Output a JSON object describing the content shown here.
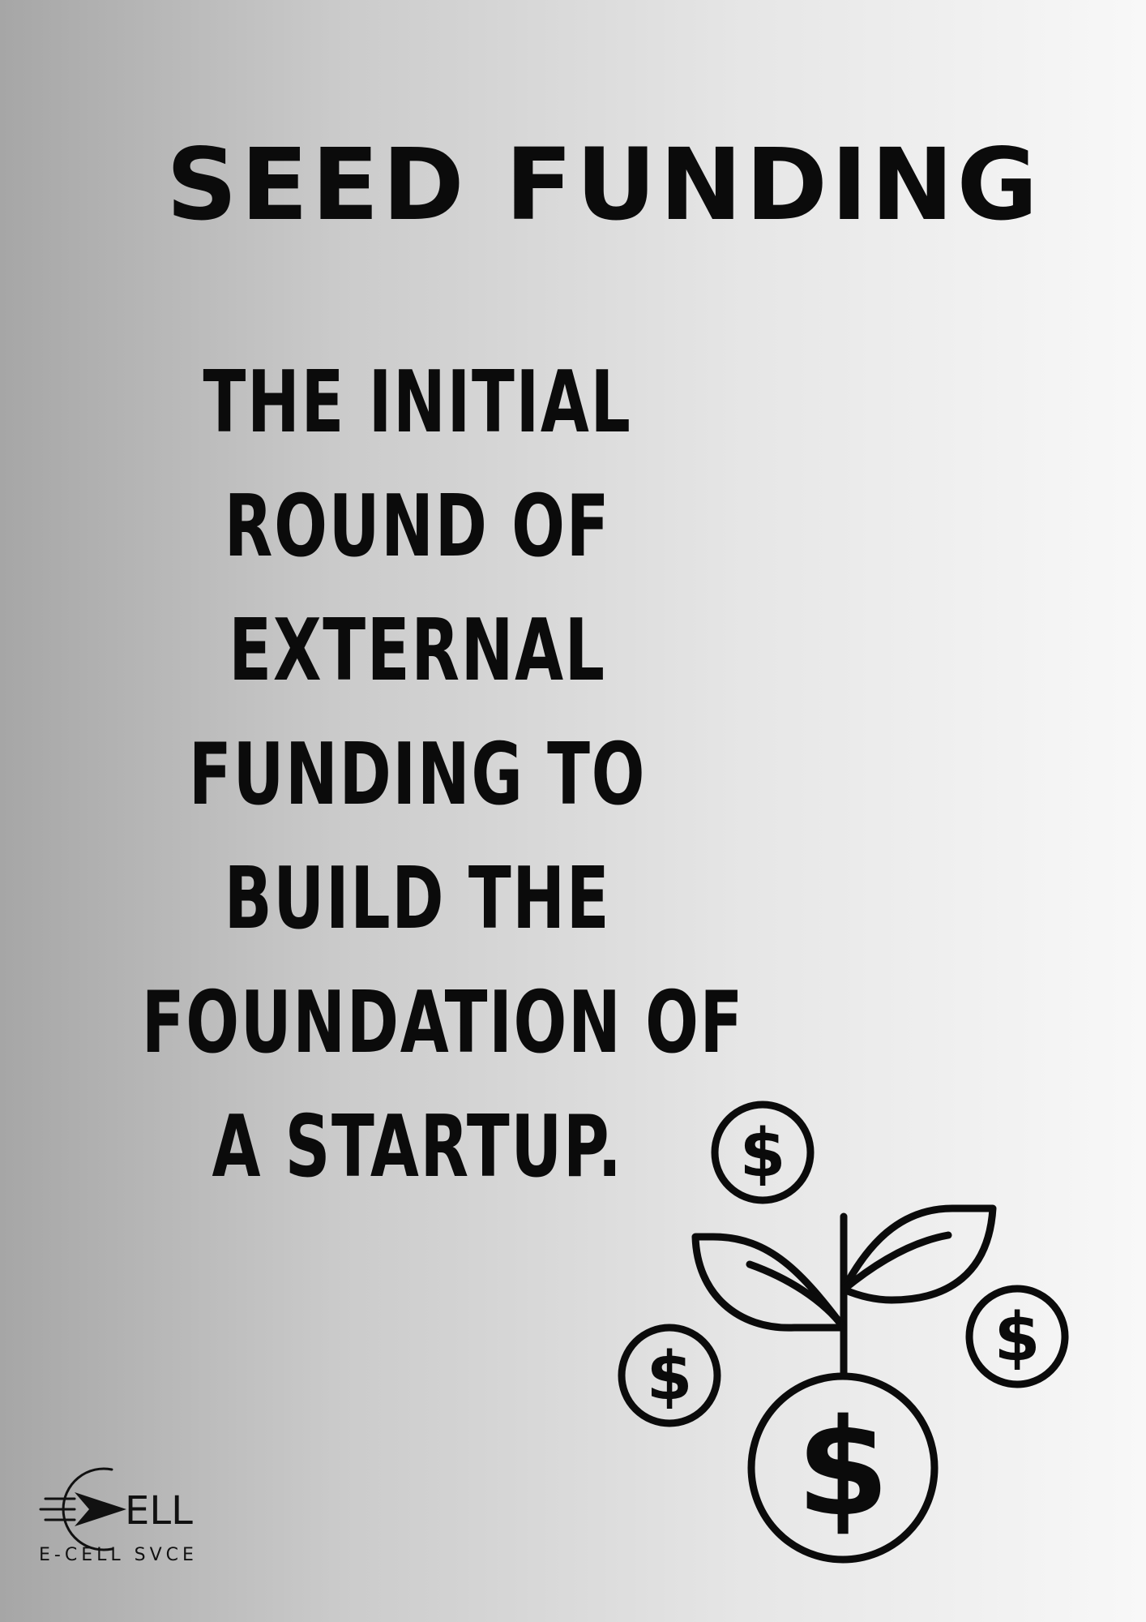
{
  "title": "SEED FUNDING",
  "body_lines": [
    "THE INITIAL",
    "ROUND OF",
    "EXTERNAL",
    "FUNDING TO",
    "BUILD THE",
    "FOUNDATION OF",
    "A STARTUP."
  ],
  "icons": {
    "illustration": "money-plant-icon",
    "coin_symbol": "$",
    "logo": "e-cell-logo"
  },
  "logo": {
    "mark_text": "ELL",
    "caption": "E-CELL SVCE"
  },
  "colors": {
    "ink": "#0b0b0b",
    "gradient_left": "#a6a6a6",
    "gradient_right": "#f8f8f8"
  }
}
